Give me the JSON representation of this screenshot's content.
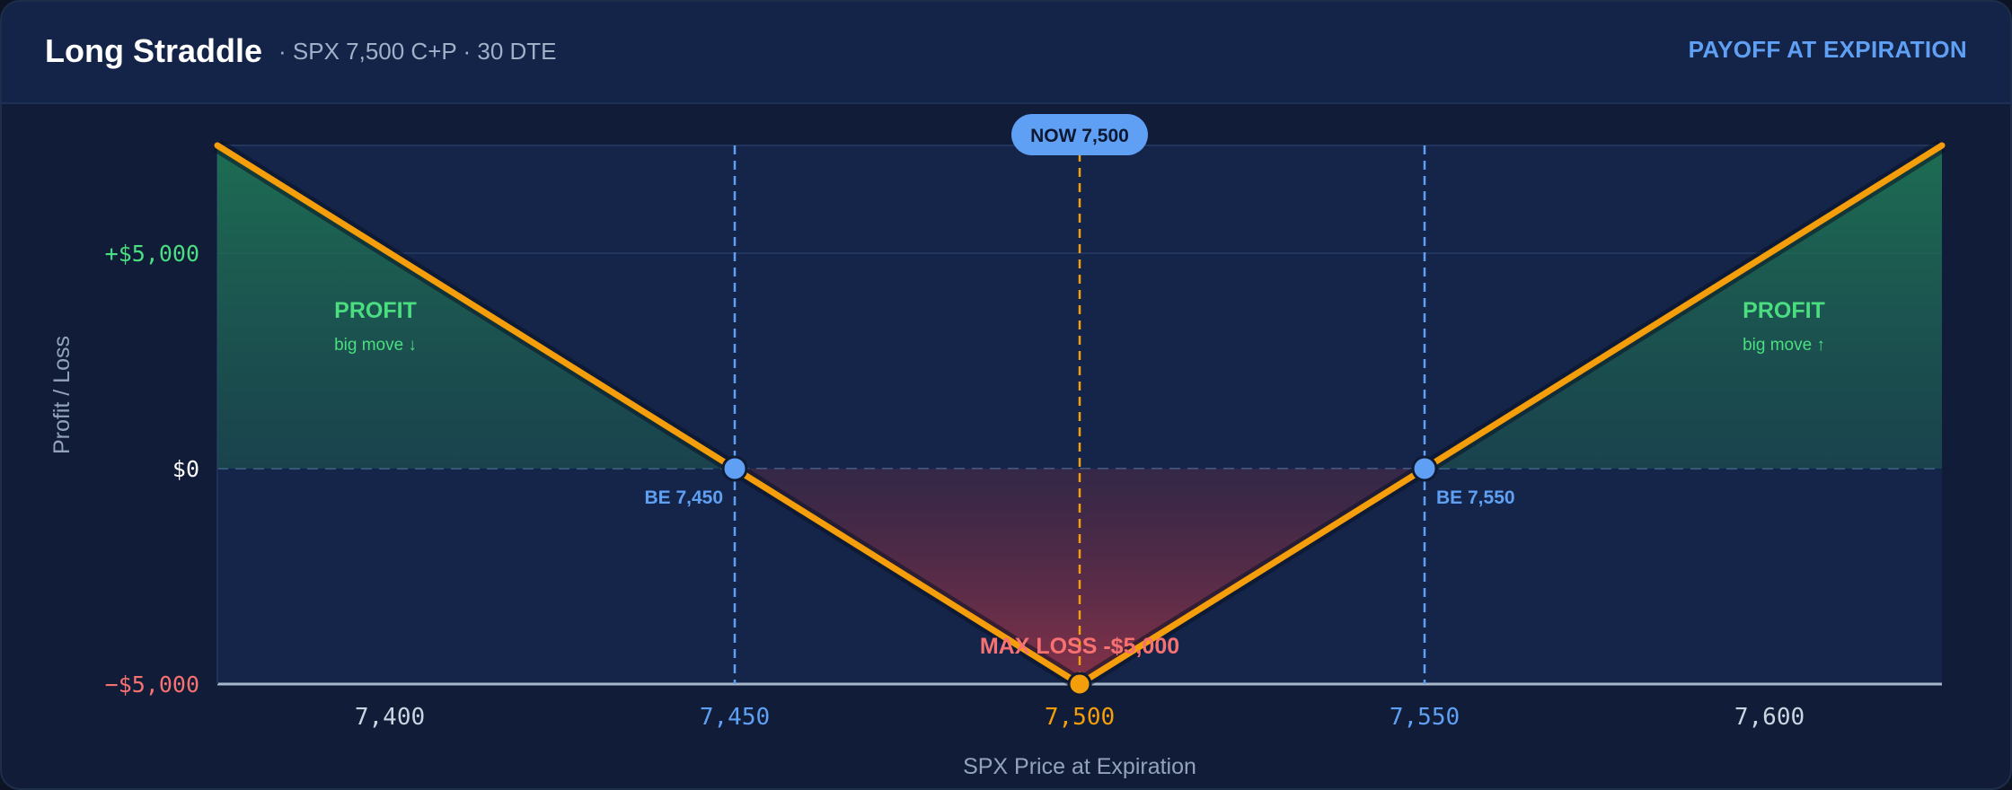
{
  "header": {
    "title": "Long Straddle",
    "subtitle": "·  SPX 7,500 C+P · 30 DTE",
    "badge": "PAYOFF AT EXPIRATION"
  },
  "chart_data": {
    "type": "line",
    "title": "Long Straddle",
    "xlabel": "SPX Price at Expiration",
    "ylabel": "Profit / Loss",
    "xlim": [
      7375,
      7625
    ],
    "ylim": [
      -5000,
      7500
    ],
    "x_ticks": [
      {
        "value": 7400,
        "label": "7,400"
      },
      {
        "value": 7450,
        "label": "7,450"
      },
      {
        "value": 7500,
        "label": "7,500"
      },
      {
        "value": 7550,
        "label": "7,550"
      },
      {
        "value": 7600,
        "label": "7,600"
      }
    ],
    "y_ticks": [
      {
        "value": 5000,
        "label": "+$5,000"
      },
      {
        "value": 0,
        "label": "$0"
      },
      {
        "value": -5000,
        "label": "−$5,000"
      }
    ],
    "series": [
      {
        "x": [
          7375,
          7500,
          7625
        ],
        "y": [
          7500,
          -5000,
          7500
        ]
      }
    ],
    "breakevens": [
      {
        "x": 7450,
        "label": "BE 7,450"
      },
      {
        "x": 7550,
        "label": "BE 7,550"
      }
    ],
    "current": {
      "x": 7500,
      "label": "NOW 7,500"
    },
    "max_loss": {
      "x": 7500,
      "y": -5000,
      "label": "MAX LOSS  -$5,000"
    },
    "annotations": [
      {
        "title": "PROFIT",
        "sub": "big move ↓",
        "x": 7400,
        "y": 3500
      },
      {
        "title": "PROFIT",
        "sub": "big move ↑",
        "x": 7600,
        "y": 3500
      }
    ],
    "grid": true,
    "colors": {
      "payoff": "#f59e0b",
      "profit": "#4ade80",
      "loss": "#f87171",
      "breakeven": "#5fa0f5",
      "now": "#f59e0b",
      "axis_text": "#cbd5e1"
    }
  }
}
